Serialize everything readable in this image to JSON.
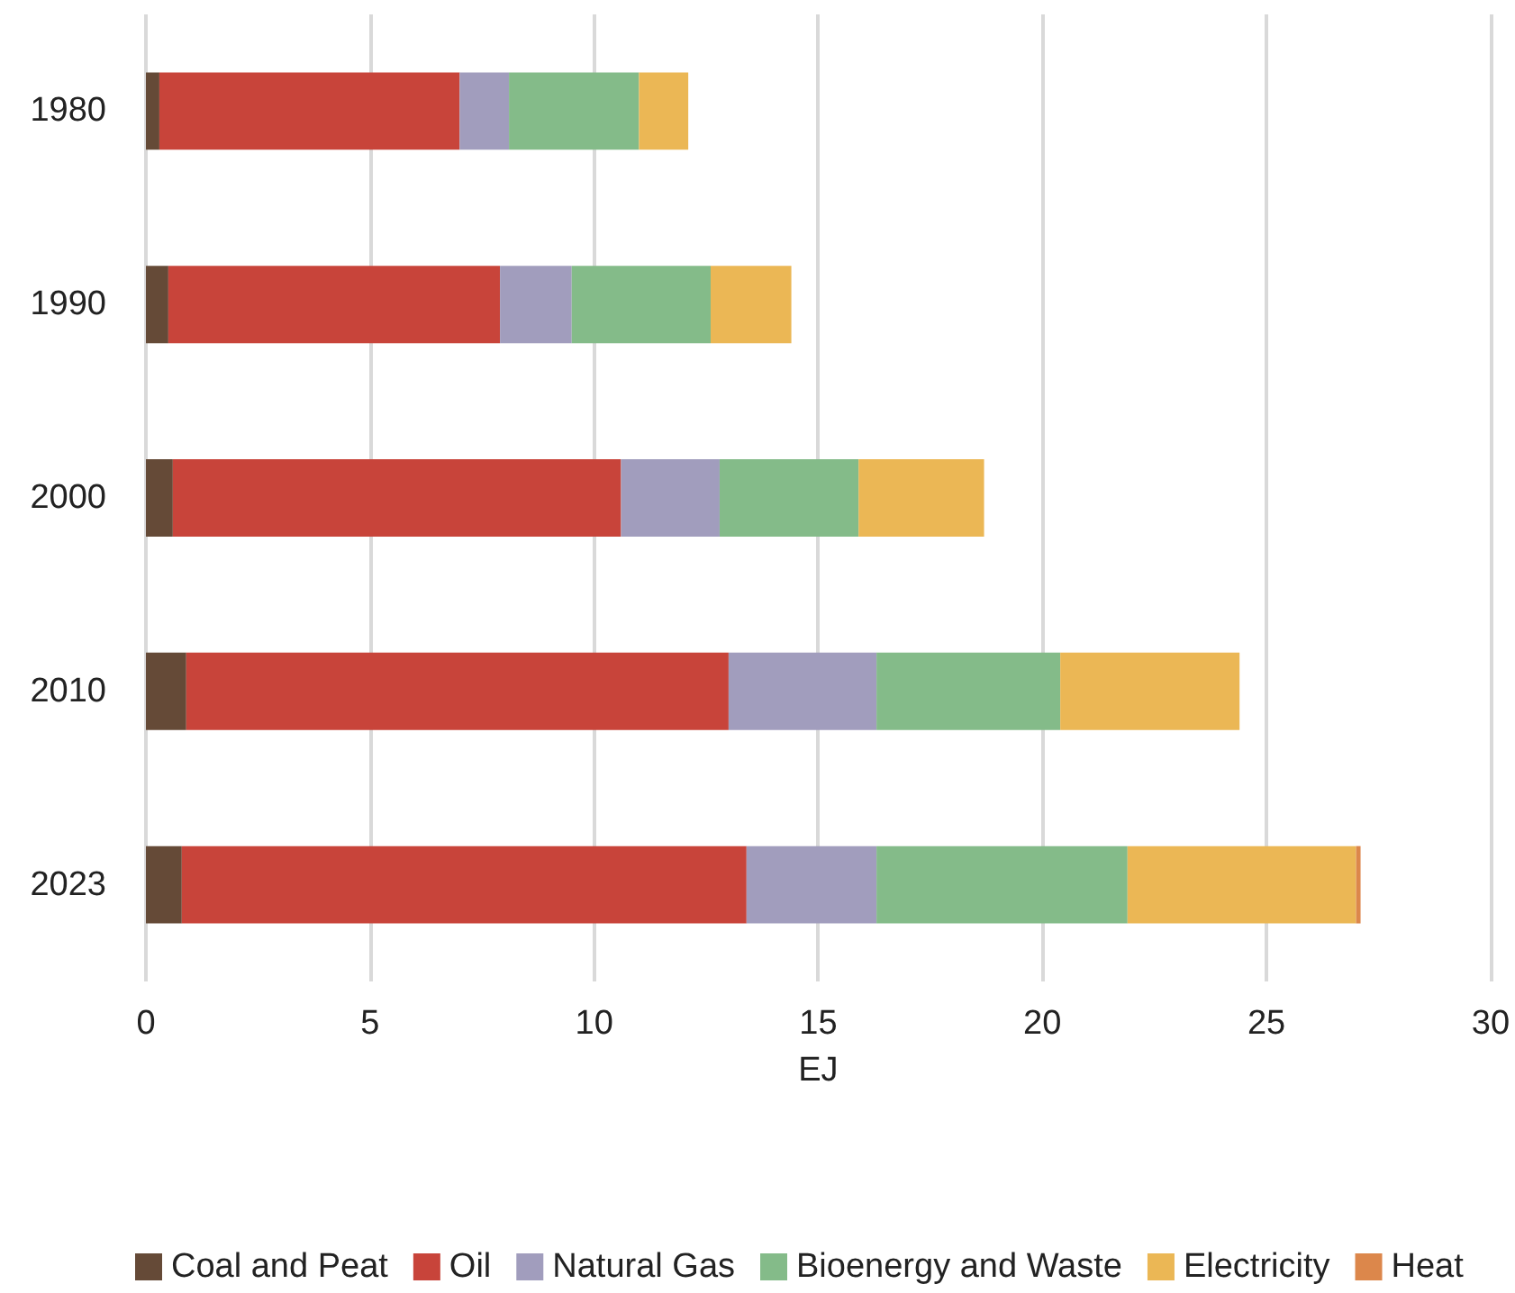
{
  "chart_data": {
    "type": "bar",
    "orientation": "horizontal",
    "stacked": true,
    "xlabel": "EJ",
    "categories": [
      "1980",
      "1990",
      "2000",
      "2010",
      "2023"
    ],
    "series": [
      {
        "name": "Coal and Peat",
        "color": "#654a37",
        "values": [
          0.3,
          0.5,
          0.6,
          0.9,
          0.8
        ]
      },
      {
        "name": "Oil",
        "color": "#c8443a",
        "values": [
          6.7,
          7.4,
          10.0,
          12.1,
          12.6
        ]
      },
      {
        "name": "Natural Gas",
        "color": "#a19dbd",
        "values": [
          1.1,
          1.6,
          2.2,
          3.3,
          2.9
        ]
      },
      {
        "name": "Bioenergy and Waste",
        "color": "#84bb89",
        "values": [
          2.9,
          3.1,
          3.1,
          4.1,
          5.6
        ]
      },
      {
        "name": "Electricity",
        "color": "#ebb755",
        "values": [
          1.1,
          1.8,
          2.8,
          4.0,
          5.1
        ]
      },
      {
        "name": "Heat",
        "color": "#dc874b",
        "values": [
          0,
          0,
          0,
          0,
          0.1
        ]
      }
    ],
    "xlim": [
      0,
      30
    ],
    "xticks": [
      0,
      5,
      10,
      15,
      20,
      25,
      30
    ],
    "grid": "x",
    "legend": "bottom"
  }
}
